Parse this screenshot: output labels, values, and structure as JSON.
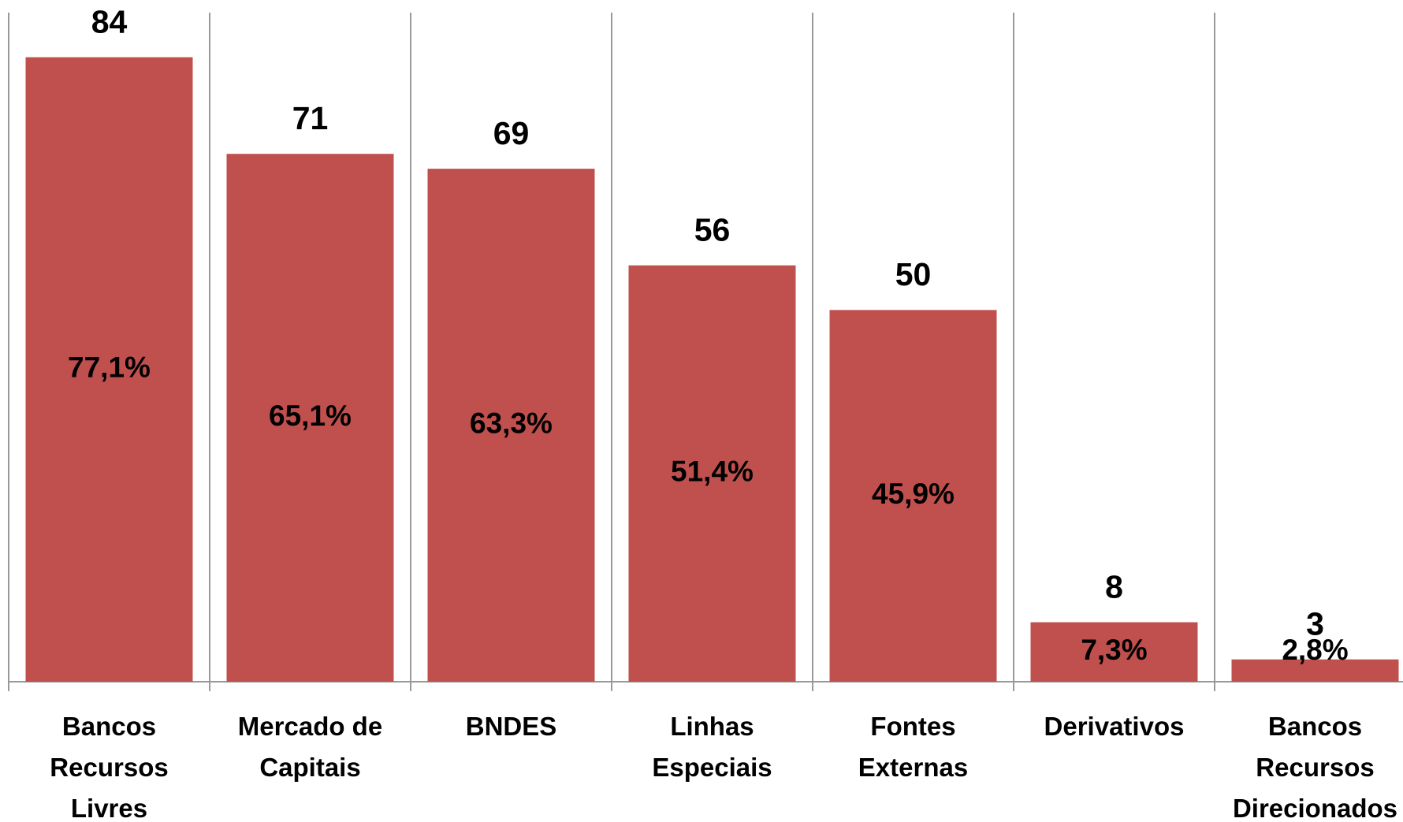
{
  "chart_data": {
    "type": "bar",
    "categories": [
      "Bancos Recursos Livres",
      "Mercado de Capitais",
      "BNDES",
      "Linhas Especiais",
      "Fontes Externas",
      "Derivativos",
      "Bancos Recursos Direcionados"
    ],
    "values": [
      84,
      71,
      69,
      56,
      50,
      8,
      3
    ],
    "shares": [
      77.1,
      65.1,
      63.3,
      51.4,
      45.9,
      7.3,
      2.8
    ],
    "share_labels": [
      "77,1%",
      "65,1%",
      "63,3%",
      "51,4%",
      "45,9%",
      "7,3%",
      "2,8%"
    ],
    "color": "#c0504d",
    "ylim": [
      0,
      90
    ]
  }
}
